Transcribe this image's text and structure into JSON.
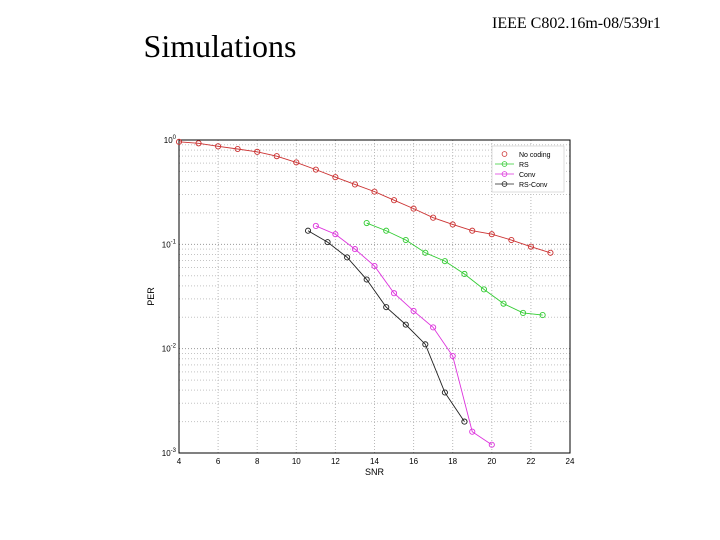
{
  "slide": {
    "title": "Simulations",
    "doc_id": "IEEE C802.16m-08/539r1"
  },
  "chart_data": {
    "type": "line",
    "xlabel": "SNR",
    "ylabel": "PER",
    "xlim": [
      4,
      24
    ],
    "ylim": [
      0.001,
      1
    ],
    "yscale": "log",
    "xticks": [
      4,
      6,
      8,
      10,
      12,
      14,
      16,
      18,
      20,
      22,
      24
    ],
    "yticks": [
      {
        "value": 1,
        "base": "10",
        "exp": "0"
      },
      {
        "value": 0.1,
        "base": "10",
        "exp": "-1"
      },
      {
        "value": 0.01,
        "base": "10",
        "exp": "-2"
      },
      {
        "value": 0.001,
        "base": "10",
        "exp": "-3"
      }
    ],
    "grid": true,
    "legend_position": "top-right",
    "series": [
      {
        "name": "No coding",
        "color": "#cc3333",
        "marker": "circle",
        "x": [
          4,
          5,
          6,
          7,
          8,
          9,
          10,
          11,
          12,
          13,
          14,
          15,
          16,
          17,
          18,
          19,
          20,
          21,
          22,
          23
        ],
        "y": [
          0.96,
          0.93,
          0.87,
          0.82,
          0.77,
          0.7,
          0.61,
          0.52,
          0.44,
          0.375,
          0.32,
          0.265,
          0.22,
          0.18,
          0.155,
          0.135,
          0.125,
          0.11,
          0.095,
          0.083
        ]
      },
      {
        "name": "RS",
        "color": "#33cc33",
        "marker": "circle",
        "x": [
          13.6,
          14.6,
          15.6,
          16.6,
          17.6,
          18.6,
          19.6,
          20.6,
          21.6,
          22.6
        ],
        "y": [
          0.16,
          0.135,
          0.11,
          0.083,
          0.069,
          0.052,
          0.037,
          0.027,
          0.022,
          0.021
        ]
      },
      {
        "name": "Conv",
        "color": "#dd33dd",
        "marker": "circle",
        "x": [
          11,
          12,
          13,
          14,
          15,
          16,
          17,
          18,
          19,
          20
        ],
        "y": [
          0.15,
          0.125,
          0.09,
          0.062,
          0.034,
          0.023,
          0.016,
          0.0085,
          0.0016,
          0.0012
        ]
      },
      {
        "name": "RS-Conv",
        "color": "#222222",
        "marker": "circle",
        "x": [
          10.6,
          11.6,
          12.6,
          13.6,
          14.6,
          15.6,
          16.6,
          17.6,
          18.6
        ],
        "y": [
          0.135,
          0.105,
          0.075,
          0.046,
          0.025,
          0.017,
          0.011,
          0.0038,
          0.002
        ]
      }
    ]
  }
}
